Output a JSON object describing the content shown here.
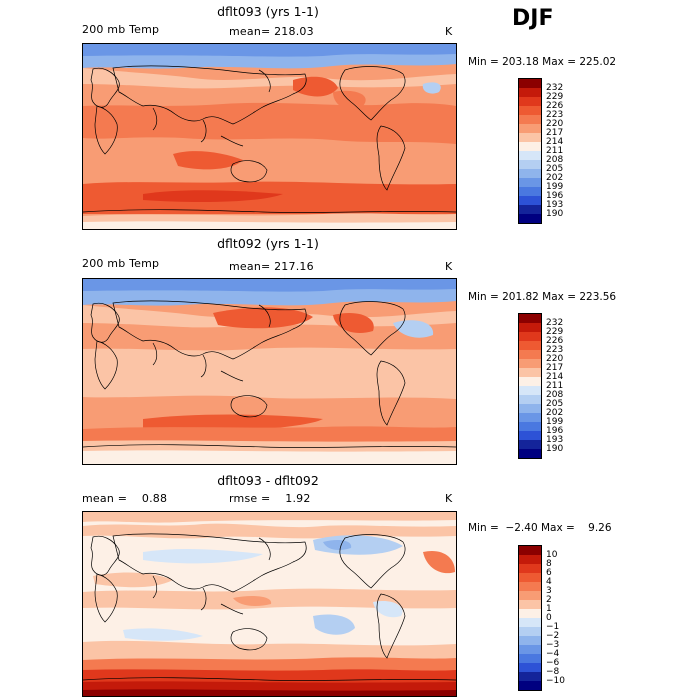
{
  "season": "DJF",
  "units": "K",
  "panels": [
    {
      "title": "dflt093 (yrs 1-1)",
      "left_label": "200 mb Temp",
      "mid_label": "mean= 218.03",
      "minmax": "Min = 203.18 Max = 225.02",
      "levels": [
        "232",
        "229",
        "226",
        "223",
        "220",
        "217",
        "214",
        "211",
        "208",
        "205",
        "202",
        "199",
        "196",
        "193",
        "190"
      ],
      "colors": [
        "#8b0000",
        "#c41a0a",
        "#e0381c",
        "#ee5a32",
        "#f47a50",
        "#f89c74",
        "#fbc4a6",
        "#fdf0e6",
        "#d6e6f8",
        "#b4cff2",
        "#8fb4ec",
        "#6a96e6",
        "#4a78e0",
        "#2d52d6",
        "#14249a",
        "#000080"
      ]
    },
    {
      "title": "dflt092 (yrs 1-1)",
      "left_label": "200 mb Temp",
      "mid_label": "mean= 217.16",
      "minmax": "Min = 201.82 Max = 223.56",
      "levels": [
        "232",
        "229",
        "226",
        "223",
        "220",
        "217",
        "214",
        "211",
        "208",
        "205",
        "202",
        "199",
        "196",
        "193",
        "190"
      ],
      "colors": [
        "#8b0000",
        "#c41a0a",
        "#e0381c",
        "#ee5a32",
        "#f47a50",
        "#f89c74",
        "#fbc4a6",
        "#fdf0e6",
        "#d6e6f8",
        "#b4cff2",
        "#8fb4ec",
        "#6a96e6",
        "#4a78e0",
        "#2d52d6",
        "#14249a",
        "#000080"
      ]
    },
    {
      "title": "dflt093 - dflt092",
      "left_label": "mean =    0.88",
      "mid_label": "rmse =    1.92",
      "minmax": "Min =  −2.40 Max =    9.26",
      "levels": [
        "10",
        "8",
        "6",
        "4",
        "3",
        "2",
        "1",
        "0",
        "−1",
        "−2",
        "−3",
        "−4",
        "−6",
        "−8",
        "−10"
      ],
      "colors": [
        "#8b0000",
        "#c41a0a",
        "#e0381c",
        "#ee5a32",
        "#f47a50",
        "#f89c74",
        "#fbc4a6",
        "#fdf0e6",
        "#d6e6f8",
        "#b4cff2",
        "#8fb4ec",
        "#6a96e6",
        "#4a78e0",
        "#2d52d6",
        "#14249a",
        "#000080"
      ]
    }
  ]
}
